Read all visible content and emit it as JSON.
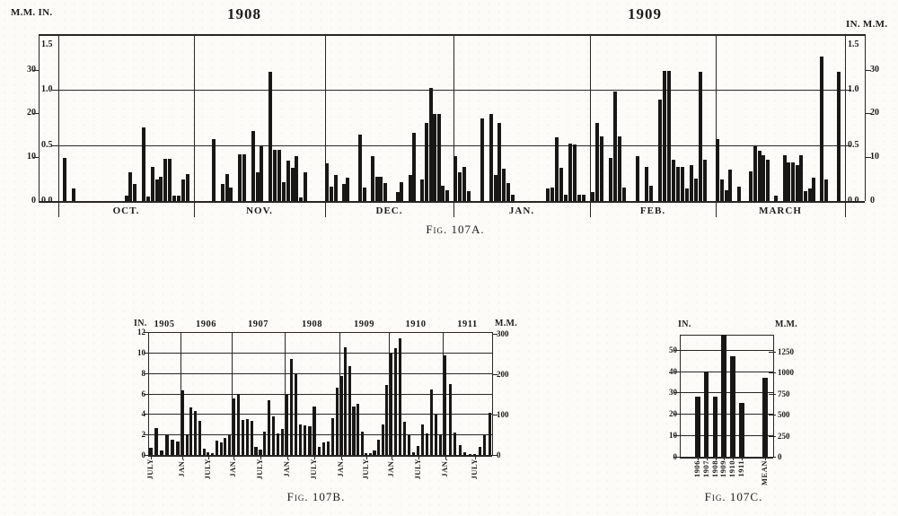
{
  "page": {
    "paper_color": "#fcfbf7",
    "ink_color": "#1d1c1a",
    "bar_color": "#181715"
  },
  "chart_data": [
    {
      "id": "fig107a",
      "type": "bar",
      "caption": "Fig. 107A.",
      "description": "Daily rainfall, October 1908 - March 1909",
      "top_left_header": "M.M. IN.",
      "top_right_header": "IN. M.M.",
      "year_labels": {
        "left": "1908",
        "right": "1909"
      },
      "y_axis": {
        "inches_max": 1.5,
        "in_ticks": [
          "1.5",
          "1.0",
          "0.5",
          "0.0"
        ],
        "mm_ticks": [
          "30",
          "20",
          "10",
          "0"
        ]
      },
      "x_axis": "day of month",
      "months": [
        {
          "label": "OCT.",
          "days": 31,
          "bars": [
            [
              2,
              0.39
            ],
            [
              4,
              0.11
            ],
            [
              16,
              0.05
            ],
            [
              17,
              0.26
            ],
            [
              18,
              0.15
            ],
            [
              20,
              0.66
            ],
            [
              21,
              0.04
            ],
            [
              22,
              0.31
            ],
            [
              23,
              0.19
            ],
            [
              24,
              0.22
            ],
            [
              25,
              0.38
            ],
            [
              26,
              0.38
            ],
            [
              27,
              0.05
            ],
            [
              28,
              0.05
            ],
            [
              29,
              0.19
            ],
            [
              30,
              0.24
            ]
          ]
        },
        {
          "label": "NOV.",
          "days": 30,
          "bars": [
            [
              5,
              0.56
            ],
            [
              7,
              0.15
            ],
            [
              8,
              0.24
            ],
            [
              9,
              0.12
            ],
            [
              11,
              0.42
            ],
            [
              12,
              0.42
            ],
            [
              14,
              0.63
            ],
            [
              15,
              0.26
            ],
            [
              16,
              0.49
            ],
            [
              18,
              1.16
            ],
            [
              19,
              0.46
            ],
            [
              20,
              0.46
            ],
            [
              21,
              0.17
            ],
            [
              22,
              0.36
            ],
            [
              23,
              0.3
            ],
            [
              24,
              0.4
            ],
            [
              25,
              0.03
            ],
            [
              26,
              0.26
            ]
          ]
        },
        {
          "label": "DEC.",
          "days": 31,
          "bars": [
            [
              1,
              0.34
            ],
            [
              2,
              0.13
            ],
            [
              3,
              0.23
            ],
            [
              5,
              0.15
            ],
            [
              6,
              0.21
            ],
            [
              9,
              0.6
            ],
            [
              10,
              0.12
            ],
            [
              12,
              0.4
            ],
            [
              13,
              0.22
            ],
            [
              14,
              0.22
            ],
            [
              15,
              0.16
            ],
            [
              18,
              0.08
            ],
            [
              19,
              0.17
            ],
            [
              21,
              0.23
            ],
            [
              22,
              0.61
            ],
            [
              24,
              0.19
            ],
            [
              25,
              0.7
            ],
            [
              26,
              1.02
            ],
            [
              27,
              0.78
            ],
            [
              28,
              0.78
            ],
            [
              29,
              0.14
            ],
            [
              30,
              0.1
            ]
          ]
        },
        {
          "label": "JAN.",
          "days": 31,
          "bars": [
            [
              1,
              0.4
            ],
            [
              2,
              0.26
            ],
            [
              3,
              0.31
            ],
            [
              4,
              0.09
            ],
            [
              7,
              0.74
            ],
            [
              9,
              0.78
            ],
            [
              10,
              0.23
            ],
            [
              11,
              0.7
            ],
            [
              12,
              0.29
            ],
            [
              13,
              0.16
            ],
            [
              14,
              0.06
            ],
            [
              22,
              0.11
            ],
            [
              23,
              0.12
            ],
            [
              24,
              0.57
            ],
            [
              25,
              0.3
            ],
            [
              26,
              0.06
            ],
            [
              27,
              0.52
            ],
            [
              28,
              0.51
            ],
            [
              29,
              0.06
            ],
            [
              30,
              0.06
            ]
          ]
        },
        {
          "label": "FEB.",
          "days": 28,
          "bars": [
            [
              1,
              0.08
            ],
            [
              2,
              0.7
            ],
            [
              3,
              0.58
            ],
            [
              5,
              0.39
            ],
            [
              6,
              0.98
            ],
            [
              7,
              0.58
            ],
            [
              8,
              0.12
            ],
            [
              11,
              0.4
            ],
            [
              13,
              0.31
            ],
            [
              14,
              0.14
            ],
            [
              16,
              0.91
            ],
            [
              17,
              1.17
            ],
            [
              18,
              1.17
            ],
            [
              19,
              0.37
            ],
            [
              20,
              0.31
            ],
            [
              21,
              0.31
            ],
            [
              22,
              0.11
            ],
            [
              23,
              0.32
            ],
            [
              24,
              0.2
            ],
            [
              25,
              1.16
            ],
            [
              26,
              0.37
            ]
          ]
        },
        {
          "label": "MARCH",
          "days": 31,
          "bars": [
            [
              1,
              0.56
            ],
            [
              2,
              0.19
            ],
            [
              3,
              0.1
            ],
            [
              4,
              0.28
            ],
            [
              6,
              0.13
            ],
            [
              9,
              0.27
            ],
            [
              10,
              0.49
            ],
            [
              11,
              0.45
            ],
            [
              12,
              0.41
            ],
            [
              13,
              0.37
            ],
            [
              15,
              0.05
            ],
            [
              17,
              0.41
            ],
            [
              18,
              0.35
            ],
            [
              19,
              0.35
            ],
            [
              20,
              0.32
            ],
            [
              21,
              0.41
            ],
            [
              22,
              0.09
            ],
            [
              23,
              0.11
            ],
            [
              24,
              0.21
            ],
            [
              26,
              1.3
            ],
            [
              27,
              0.19
            ],
            [
              30,
              1.16
            ]
          ]
        }
      ]
    },
    {
      "id": "fig107b",
      "type": "bar",
      "caption": "Fig. 107B.",
      "description": "Monthly rainfall in inches, July 1905 - October 1911",
      "left_header": "IN.",
      "right_header": "M.M.",
      "y_axis": {
        "inches_max": 12,
        "in_ticks": [
          "12",
          "10",
          "8",
          "6",
          "4",
          "2",
          "0"
        ],
        "mm_ticks": [
          "300",
          "200",
          "100",
          "0"
        ]
      },
      "month_tick_labels": {
        "jan": "JAN.",
        "jul": "JULY"
      },
      "years": [
        {
          "label": "1905",
          "start": "jul",
          "values": [
            0.7,
            2.6,
            0.4,
            1.9,
            1.5,
            1.3
          ]
        },
        {
          "label": "1906",
          "start": "jan",
          "values": [
            6.3,
            2.0,
            4.6,
            4.3,
            3.3,
            0.6,
            0.3,
            0.2,
            1.4,
            1.2,
            1.7,
            1.9
          ]
        },
        {
          "label": "1907",
          "start": "jan",
          "values": [
            5.5,
            6.0,
            3.4,
            3.5,
            3.3,
            0.8,
            0.5,
            2.3,
            5.3,
            3.8,
            2.1,
            2.5
          ]
        },
        {
          "label": "1908",
          "start": "jan",
          "values": [
            6.0,
            9.4,
            8.0,
            3.0,
            2.9,
            2.8,
            4.7,
            0.8,
            1.2,
            1.3,
            3.6,
            6.6
          ]
        },
        {
          "label": "1909",
          "start": "jan",
          "values": [
            7.7,
            10.5,
            8.7,
            4.7,
            5.0,
            2.3,
            0.2,
            0.2,
            0.4,
            1.5,
            3.0,
            6.8
          ]
        },
        {
          "label": "1910",
          "start": "jan",
          "values": [
            10.0,
            10.4,
            11.4,
            3.2,
            1.9,
            0.3,
            0.9,
            3.0,
            2.1,
            6.4,
            3.9,
            2.0
          ]
        },
        {
          "label": "1911",
          "start": "jan",
          "values": [
            9.7,
            6.9,
            2.2,
            1.0,
            0.3,
            0.1,
            0.1,
            0.8,
            1.9,
            4.1
          ]
        }
      ]
    },
    {
      "id": "fig107c",
      "type": "bar",
      "caption": "Fig. 107C.",
      "description": "Annual rainfall in inches and mean",
      "left_header": "IN.",
      "right_header": "M.M.",
      "y_axis": {
        "inches_max": 57,
        "in_ticks": [
          "50",
          "40",
          "30",
          "20",
          "10",
          "0"
        ],
        "mm_ticks": [
          "1250",
          "1000",
          "750",
          "500",
          "250",
          "0"
        ]
      },
      "categories": [
        "1906",
        "1907",
        "1908",
        "1909",
        "1910",
        "1911",
        "MEAN"
      ],
      "values_in": [
        28,
        40,
        28,
        57,
        47,
        25,
        37
      ]
    }
  ]
}
